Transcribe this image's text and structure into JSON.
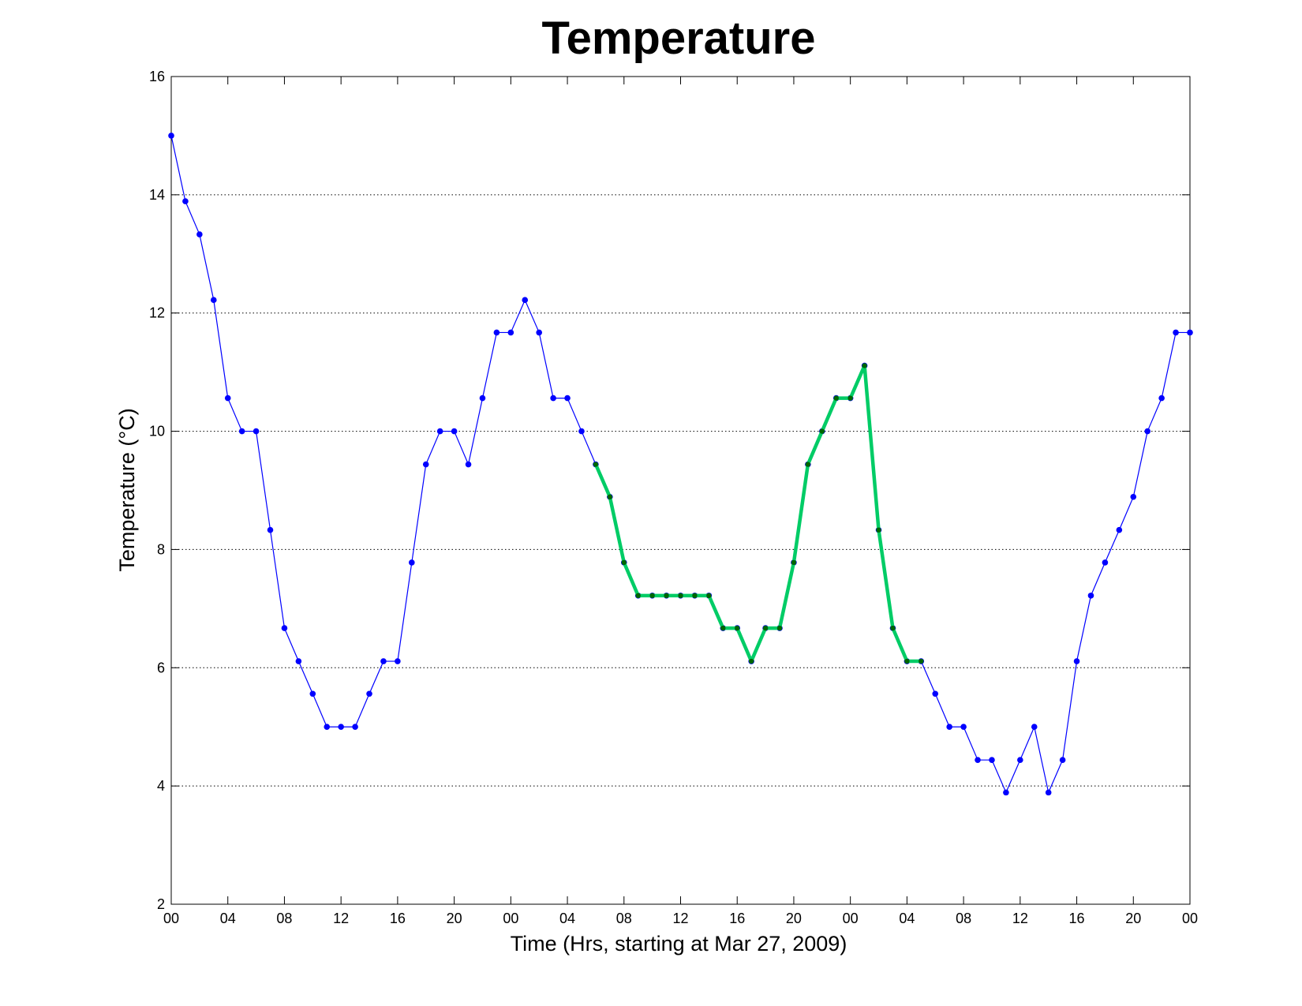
{
  "chart_data": {
    "type": "line",
    "title": "Temperature",
    "xlabel": "Time (Hrs, starting at Mar 27, 2009)",
    "ylabel": "Temperature (°C)",
    "ylim": [
      2,
      16
    ],
    "xlim": [
      0,
      72
    ],
    "yticks": [
      2,
      4,
      6,
      8,
      10,
      12,
      14,
      16
    ],
    "xtick_positions": [
      0,
      4,
      8,
      12,
      16,
      20,
      24,
      28,
      32,
      36,
      40,
      44,
      48,
      52,
      56,
      60,
      64,
      68,
      72
    ],
    "xtick_labels": [
      "00",
      "04",
      "08",
      "12",
      "16",
      "20",
      "00",
      "04",
      "08",
      "12",
      "16",
      "20",
      "00",
      "04",
      "08",
      "12",
      "16",
      "20",
      "00"
    ],
    "grid": true,
    "series": [
      {
        "color": "#0000ff",
        "marker_color": "#0000ff",
        "x": [
          0,
          1,
          2,
          3,
          4,
          5,
          6,
          7,
          8,
          9,
          10,
          11,
          12,
          13,
          14,
          15,
          16,
          17,
          18,
          19,
          20,
          21,
          22,
          23,
          24,
          25,
          26,
          27,
          28,
          29,
          30,
          31,
          32,
          33,
          34,
          35,
          36,
          37,
          38,
          39,
          40,
          41,
          42,
          43,
          44,
          45,
          46,
          47,
          48,
          49,
          50,
          51,
          52,
          53,
          54,
          55,
          56,
          57,
          58,
          59,
          60,
          61,
          62,
          63,
          64,
          65,
          66,
          67,
          68,
          69,
          70,
          71,
          72
        ],
        "y": [
          15,
          13.89,
          13.33,
          12.22,
          10.56,
          10,
          10,
          8.33,
          6.67,
          6.11,
          5.56,
          5,
          5,
          5,
          5.56,
          6.11,
          6.11,
          7.78,
          9.44,
          10,
          10,
          9.44,
          10.56,
          11.67,
          11.67,
          12.22,
          11.67,
          10.56,
          10.56,
          10,
          9.44,
          8.89,
          7.78,
          7.22,
          7.22,
          7.22,
          7.22,
          7.22,
          7.22,
          6.67,
          6.67,
          6.11,
          6.67,
          6.67,
          7.78,
          9.44,
          10,
          10.56,
          10.56,
          11.11,
          8.33,
          6.67,
          6.11,
          6.11,
          5.56,
          5,
          5,
          4.44,
          4.44,
          3.89,
          4.44,
          5,
          3.89,
          4.44,
          6.11,
          7.22,
          7.78,
          8.33,
          8.89,
          10,
          10.56,
          11.67,
          11.67
        ]
      },
      {
        "color": "#00cc66",
        "marker_color": "#006600",
        "x": [
          30,
          31,
          32,
          33,
          34,
          35,
          36,
          37,
          38,
          39,
          40,
          41,
          42,
          43,
          44,
          45,
          46,
          47,
          48,
          49,
          50,
          51,
          52,
          53
        ],
        "y": [
          9.44,
          8.89,
          7.78,
          7.22,
          7.22,
          7.22,
          7.22,
          7.22,
          7.22,
          6.67,
          6.67,
          6.11,
          6.67,
          6.67,
          7.78,
          9.44,
          10,
          10.56,
          10.56,
          11.11,
          8.33,
          6.67,
          6.11,
          6.11
        ]
      }
    ]
  }
}
